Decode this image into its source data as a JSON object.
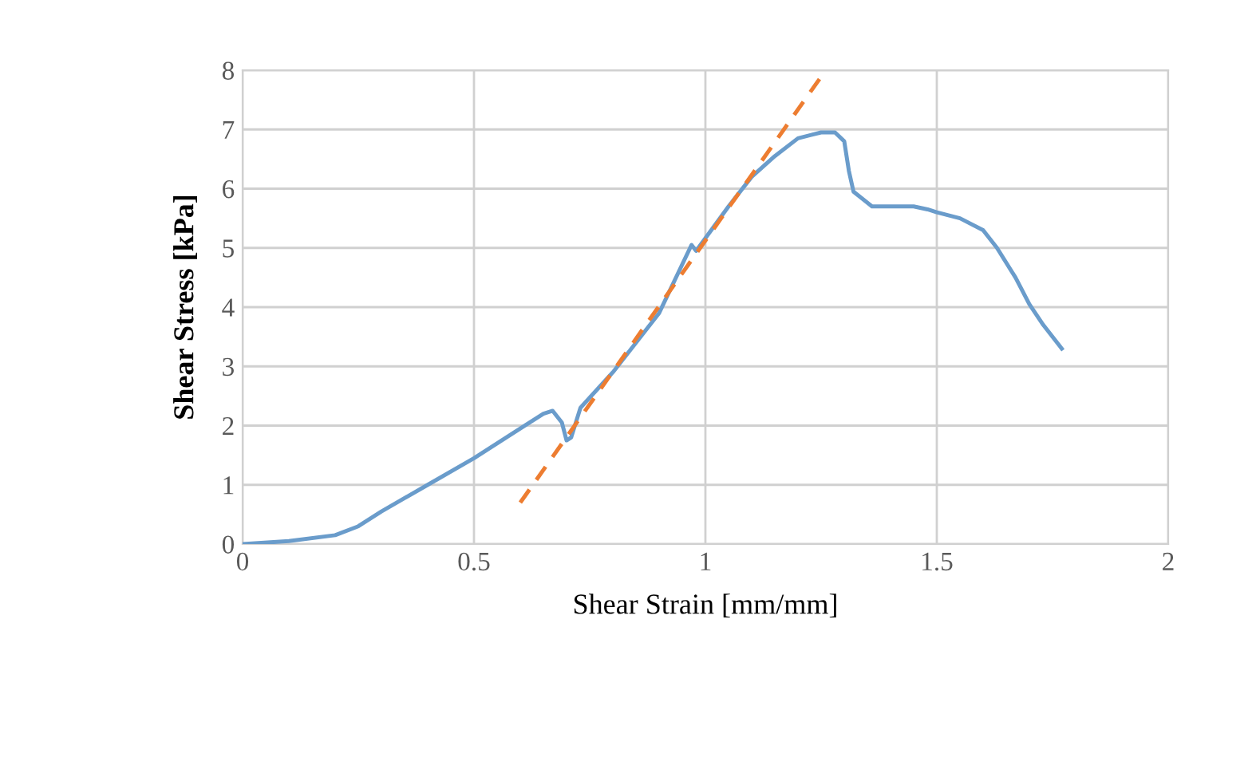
{
  "chart_data": {
    "type": "line",
    "xlabel": "Shear Strain [mm/mm]",
    "ylabel": "Shear Stress [kPa]",
    "xlim": [
      0,
      2
    ],
    "ylim": [
      0,
      8
    ],
    "xticks": [
      0,
      0.5,
      1,
      1.5,
      2
    ],
    "yticks": [
      0,
      1,
      2,
      3,
      4,
      5,
      6,
      7,
      8
    ],
    "grid": true,
    "legend": false,
    "series": [
      {
        "color": "#6a9ccb",
        "line_style": "solid",
        "x": [
          0,
          0.1,
          0.2,
          0.25,
          0.3,
          0.4,
          0.5,
          0.6,
          0.65,
          0.67,
          0.69,
          0.7,
          0.71,
          0.73,
          0.8,
          0.9,
          0.97,
          0.98,
          1.05,
          1.1,
          1.15,
          1.2,
          1.25,
          1.28,
          1.3,
          1.31,
          1.32,
          1.36,
          1.4,
          1.45,
          1.48,
          1.5,
          1.55,
          1.6,
          1.63,
          1.67,
          1.7,
          1.73,
          1.77
        ],
        "values": [
          0,
          0.05,
          0.15,
          0.3,
          0.55,
          1.0,
          1.45,
          1.95,
          2.2,
          2.25,
          2.05,
          1.75,
          1.8,
          2.3,
          2.9,
          3.9,
          5.05,
          4.95,
          5.7,
          6.2,
          6.55,
          6.85,
          6.95,
          6.95,
          6.8,
          6.3,
          5.95,
          5.7,
          5.7,
          5.7,
          5.65,
          5.6,
          5.5,
          5.3,
          5.0,
          4.5,
          4.05,
          3.7,
          3.3
        ]
      },
      {
        "color": "#ed7d31",
        "line_style": "dashed",
        "x": [
          0.6,
          1.26
        ],
        "values": [
          0.7,
          8.0
        ]
      }
    ]
  }
}
